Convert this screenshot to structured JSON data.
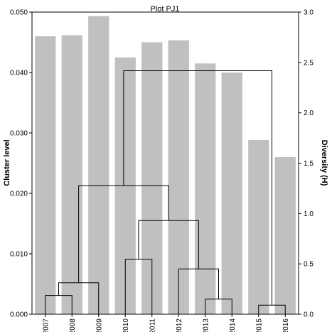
{
  "chart_data": {
    "type": "bar",
    "title": "Plot PJ1",
    "ylabel_left": "Cluster level",
    "ylabel_right": "Diversity (H)",
    "ylim_left": [
      0,
      0.05
    ],
    "ylim_right": [
      0,
      3.0
    ],
    "yticks_left": [
      "0.000",
      "0.010",
      "0.020",
      "0.030",
      "0.040",
      "0.050"
    ],
    "yticks_right": [
      "0.0",
      "0.5",
      "1.0",
      "1.5",
      "2.0",
      "2.5",
      "3.0"
    ],
    "grid": false,
    "categories": [
      "2007",
      "2008",
      "2009",
      "2010",
      "2011",
      "2012",
      "2013",
      "2014",
      "2015",
      "2016"
    ],
    "series": [
      {
        "axis": "right",
        "color": "#c0c0c0",
        "values": [
          2.76,
          2.77,
          2.96,
          2.55,
          2.7,
          2.72,
          2.49,
          2.4,
          1.73,
          1.56
        ]
      }
    ],
    "dendrogram": {
      "axis": "left",
      "merges": [
        {
          "a": "2007",
          "b": "2008",
          "height": 0.0031
        },
        {
          "a": "m0",
          "b": "2009",
          "height": 0.0052
        },
        {
          "a": "2010",
          "b": "2011",
          "height": 0.0091
        },
        {
          "a": "2013",
          "b": "2014",
          "height": 0.0025
        },
        {
          "a": "2012",
          "b": "m3",
          "height": 0.0075
        },
        {
          "a": "m2",
          "b": "m4",
          "height": 0.0155
        },
        {
          "a": "m1",
          "b": "m5",
          "height": 0.0213
        },
        {
          "a": "2015",
          "b": "2016",
          "height": 0.0015
        },
        {
          "a": "m6",
          "b": "m7",
          "height": 0.0403
        }
      ]
    }
  }
}
